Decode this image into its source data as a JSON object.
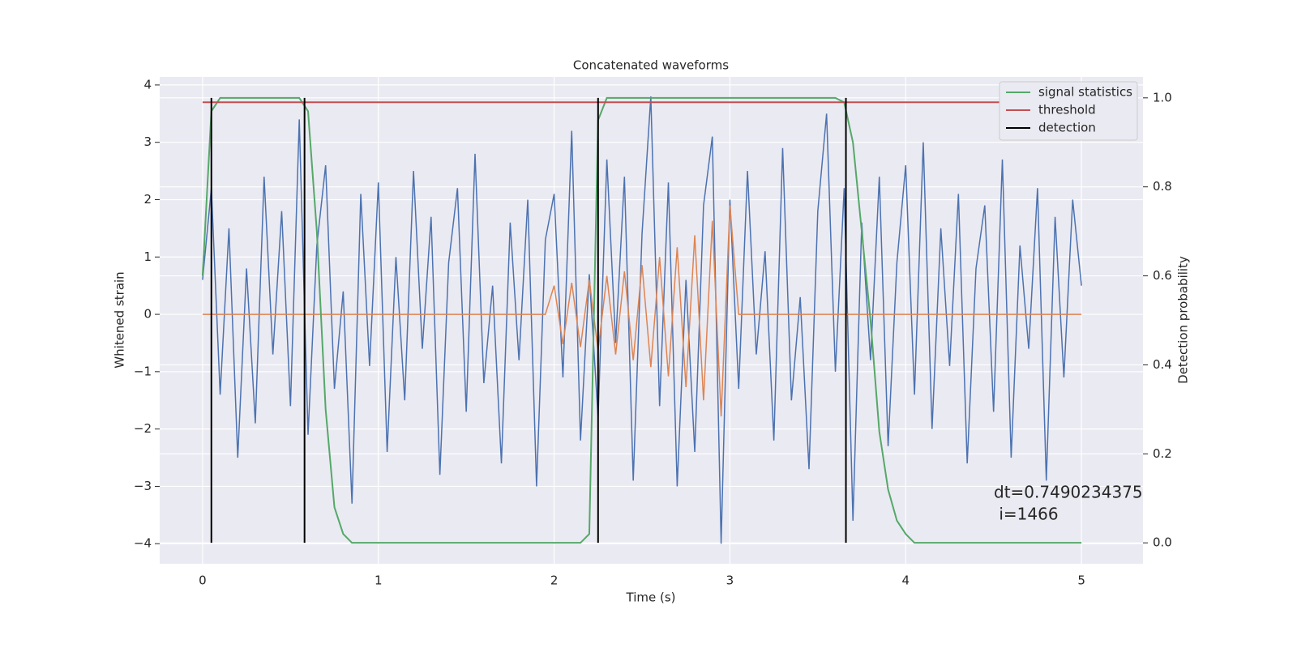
{
  "chart_data": {
    "type": "line",
    "title": "Concatenated waveforms",
    "xlabel": "Time (s)",
    "ylabel": "Whitened strain",
    "y2label": "Detection probability",
    "annotation": [
      "dt=0.7490234375",
      " i=1466"
    ],
    "xlim": [
      -0.244,
      5.35
    ],
    "ylim": [
      -4.35,
      4.14
    ],
    "y2lim": [
      -0.047,
      1.047
    ],
    "xticks": [
      0,
      1,
      2,
      3,
      4,
      5
    ],
    "yticks": [
      {
        "value": -4,
        "label": "−4"
      },
      {
        "value": -3,
        "label": "−3"
      },
      {
        "value": -2,
        "label": "−2"
      },
      {
        "value": -1,
        "label": "−1"
      },
      0,
      1,
      2,
      3,
      4
    ],
    "y2ticks": [
      {
        "value": 0,
        "label": "0.0"
      },
      0.2,
      0.4,
      0.6,
      0.8,
      {
        "value": 1,
        "label": "1.0"
      }
    ],
    "grid": true,
    "legend": "upper right",
    "x": [
      0,
      0.05,
      0.1,
      0.15,
      0.2,
      0.25,
      0.3,
      0.35,
      0.4,
      0.45,
      0.5,
      0.55,
      0.6,
      0.65,
      0.7,
      0.75,
      0.8,
      0.85,
      0.9,
      0.95,
      1,
      1.05,
      1.1,
      1.15,
      1.2,
      1.25,
      1.3,
      1.35,
      1.4,
      1.45,
      1.5,
      1.55,
      1.6,
      1.65,
      1.7,
      1.75,
      1.8,
      1.85,
      1.9,
      1.95,
      2,
      2.05,
      2.1,
      2.15,
      2.2,
      2.25,
      2.3,
      2.35,
      2.4,
      2.45,
      2.5,
      2.55,
      2.6,
      2.65,
      2.7,
      2.75,
      2.8,
      2.85,
      2.9,
      2.95,
      3,
      3.05,
      3.1,
      3.15,
      3.2,
      3.25,
      3.3,
      3.35,
      3.4,
      3.45,
      3.5,
      3.55,
      3.6,
      3.65,
      3.7,
      3.75,
      3.8,
      3.85,
      3.9,
      3.95,
      4,
      4.05,
      4.1,
      4.15,
      4.2,
      4.25,
      4.3,
      4.35,
      4.4,
      4.45,
      4.5,
      4.55,
      4.6,
      4.65,
      4.7,
      4.75,
      4.8,
      4.85,
      4.9,
      4.95,
      5
    ],
    "series": [
      {
        "color": "#4c72b0",
        "values": [
          0.6,
          2.2,
          -1.4,
          1.5,
          -2.5,
          0.8,
          -1.9,
          2.4,
          -0.7,
          1.8,
          -1.6,
          3.4,
          -2.1,
          1.2,
          2.6,
          -1.3,
          0.4,
          -3.3,
          2.1,
          -0.9,
          2.3,
          -2.4,
          1.0,
          -1.5,
          2.5,
          -0.6,
          1.7,
          -2.8,
          0.9,
          2.2,
          -1.7,
          2.8,
          -1.2,
          0.5,
          -2.6,
          1.6,
          -0.8,
          2.0,
          -3.0,
          1.3,
          2.1,
          -1.1,
          3.2,
          -2.2,
          0.7,
          -1.8,
          2.7,
          -0.5,
          2.4,
          -2.9,
          1.4,
          3.8,
          -1.6,
          2.3,
          -3.0,
          0.6,
          -2.4,
          1.9,
          3.1,
          -4.0,
          2.0,
          -1.3,
          2.5,
          -0.7,
          1.1,
          -2.2,
          2.9,
          -1.5,
          0.3,
          -2.7,
          1.8,
          3.5,
          -1.0,
          2.2,
          -3.6,
          1.6,
          -0.8,
          2.4,
          -2.3,
          0.9,
          2.6,
          -1.4,
          3.0,
          -2.0,
          1.5,
          -0.9,
          2.1,
          -2.6,
          0.8,
          1.9,
          -1.7,
          2.7,
          -2.5,
          1.2,
          -0.6,
          2.2,
          -2.9,
          1.7,
          -1.1,
          2.0,
          0.5
        ]
      },
      {
        "color": "#dd8452",
        "values": [
          0,
          0,
          0,
          0,
          0,
          0,
          0,
          0,
          0,
          0,
          0,
          0,
          0,
          0,
          0,
          0,
          0,
          0,
          0,
          0,
          0,
          0,
          0,
          0,
          0,
          0,
          0,
          0,
          0,
          0,
          0,
          0,
          0,
          0,
          0,
          0,
          0,
          0,
          0,
          0,
          0.5,
          -0.52,
          0.55,
          -0.57,
          0.6,
          -0.63,
          0.67,
          -0.7,
          0.75,
          -0.8,
          0.86,
          -0.92,
          1.0,
          -1.08,
          1.17,
          -1.27,
          1.38,
          -1.5,
          1.63,
          -1.78,
          1.9,
          0,
          0,
          0,
          0,
          0,
          0,
          0,
          0,
          0,
          0,
          0,
          0,
          0,
          0,
          0,
          0,
          0,
          0,
          0,
          0,
          0,
          0,
          0,
          0,
          0,
          0,
          0,
          0,
          0,
          0,
          0,
          0,
          0,
          0,
          0,
          0,
          0,
          0,
          0,
          0
        ]
      },
      {
        "name": "signal statistics",
        "color": "#55a868",
        "axis": "y2",
        "values": [
          0.6,
          0.97,
          1,
          1,
          1,
          1,
          1,
          1,
          1,
          1,
          1,
          1,
          0.97,
          0.7,
          0.3,
          0.08,
          0.02,
          0,
          0,
          0,
          0,
          0,
          0,
          0,
          0,
          0,
          0,
          0,
          0,
          0,
          0,
          0,
          0,
          0,
          0,
          0,
          0,
          0,
          0,
          0,
          0,
          0,
          0,
          0,
          0.02,
          0.95,
          1,
          1,
          1,
          1,
          1,
          1,
          1,
          1,
          1,
          1,
          1,
          1,
          1,
          1,
          1,
          1,
          1,
          1,
          1,
          1,
          1,
          1,
          1,
          1,
          1,
          1,
          1,
          0.99,
          0.9,
          0.7,
          0.5,
          0.25,
          0.12,
          0.05,
          0.02,
          0,
          0,
          0,
          0,
          0,
          0,
          0,
          0,
          0,
          0,
          0,
          0,
          0,
          0,
          0,
          0,
          0,
          0,
          0,
          0
        ]
      },
      {
        "name": "threshold",
        "color": "#c44e52",
        "axis": "y2",
        "x": [
          0,
          5
        ],
        "values": [
          0.99,
          0.99
        ]
      },
      {
        "name": "detection",
        "color": "#000000",
        "axis": "y2",
        "kind": "vlines",
        "x": [
          0.05,
          0.58,
          2.25,
          3.66
        ],
        "values": [
          1,
          1,
          1,
          1
        ]
      }
    ]
  }
}
